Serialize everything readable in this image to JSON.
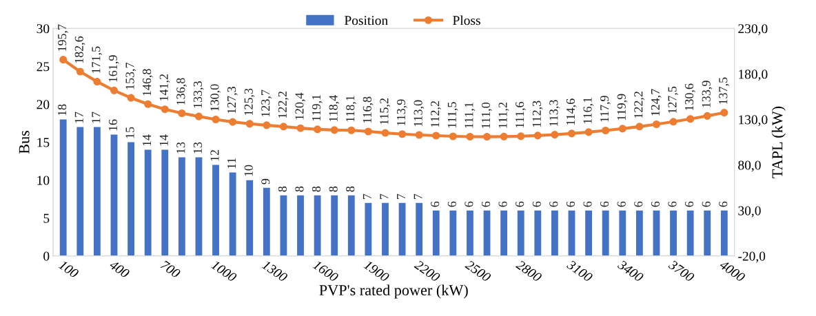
{
  "chart_data": {
    "type": "bar",
    "xlabel": "PVP's rated power (kW)",
    "ylabel": "Bus",
    "y2label": "TAPL (kW)",
    "categories": [
      "100",
      null,
      null,
      "400",
      null,
      null,
      "700",
      null,
      null,
      "1000",
      null,
      null,
      "1300",
      null,
      null,
      "1600",
      null,
      null,
      "1900",
      null,
      null,
      "2200",
      null,
      null,
      "2500",
      null,
      null,
      "2800",
      null,
      null,
      "3100",
      null,
      null,
      "3400",
      null,
      null,
      "3700",
      null,
      null,
      "4000"
    ],
    "series": [
      {
        "name": "Position",
        "color": "#4472c4",
        "values": [
          18,
          17,
          17,
          16,
          15,
          14,
          14,
          13,
          13,
          12,
          11,
          10,
          9,
          8,
          8,
          8,
          8,
          8,
          7,
          7,
          7,
          7,
          6,
          6,
          6,
          6,
          6,
          6,
          6,
          6,
          6,
          6,
          6,
          6,
          6,
          6,
          6,
          6,
          6,
          6
        ]
      },
      {
        "name": "Ploss",
        "type": "line",
        "axis": "y2",
        "color": "#ed7d31",
        "marker": "circle",
        "values": [
          195.7,
          182.6,
          171.5,
          161.9,
          153.7,
          146.8,
          141.2,
          136.8,
          133.3,
          130.0,
          127.3,
          125.3,
          123.7,
          122.2,
          120.4,
          119.1,
          118.4,
          118.1,
          116.8,
          115.2,
          113.9,
          113.0,
          112.2,
          111.5,
          111.1,
          111.0,
          111.2,
          111.6,
          112.3,
          113.3,
          114.6,
          116.1,
          117.9,
          119.9,
          122.2,
          124.7,
          127.5,
          130.6,
          133.9,
          137.5
        ],
        "value_labels": [
          "195,7",
          "182,6",
          "171,5",
          "161,9",
          "153,7",
          "146,8",
          "141,2",
          "136,8",
          "133,3",
          "130,0",
          "127,3",
          "125,3",
          "123,7",
          "122,2",
          "120,4",
          "119,1",
          "118,4",
          "118,1",
          "116,8",
          "115,2",
          "113,9",
          "113,0",
          "112,2",
          "111,5",
          "111,1",
          "111,0",
          "111,2",
          "111,6",
          "112,3",
          "113,3",
          "114,6",
          "116,1",
          "117,9",
          "119,9",
          "122,2",
          "124,7",
          "127,5",
          "130,6",
          "133,9",
          "137,5"
        ]
      }
    ],
    "data_labels": true,
    "ylim": [
      0,
      30
    ],
    "yticks": [
      0,
      5,
      10,
      15,
      20,
      25,
      30
    ],
    "y2lim": [
      -20,
      230
    ],
    "y2ticks": [
      {
        "value": -20,
        "label": "-20,0"
      },
      {
        "value": 30,
        "label": "30,0"
      },
      {
        "value": 80,
        "label": "80,0"
      },
      {
        "value": 130,
        "label": "130,0"
      },
      {
        "value": 180,
        "label": "180,0"
      },
      {
        "value": 230,
        "label": "230,0"
      }
    ],
    "legend": "top",
    "grid": false
  }
}
